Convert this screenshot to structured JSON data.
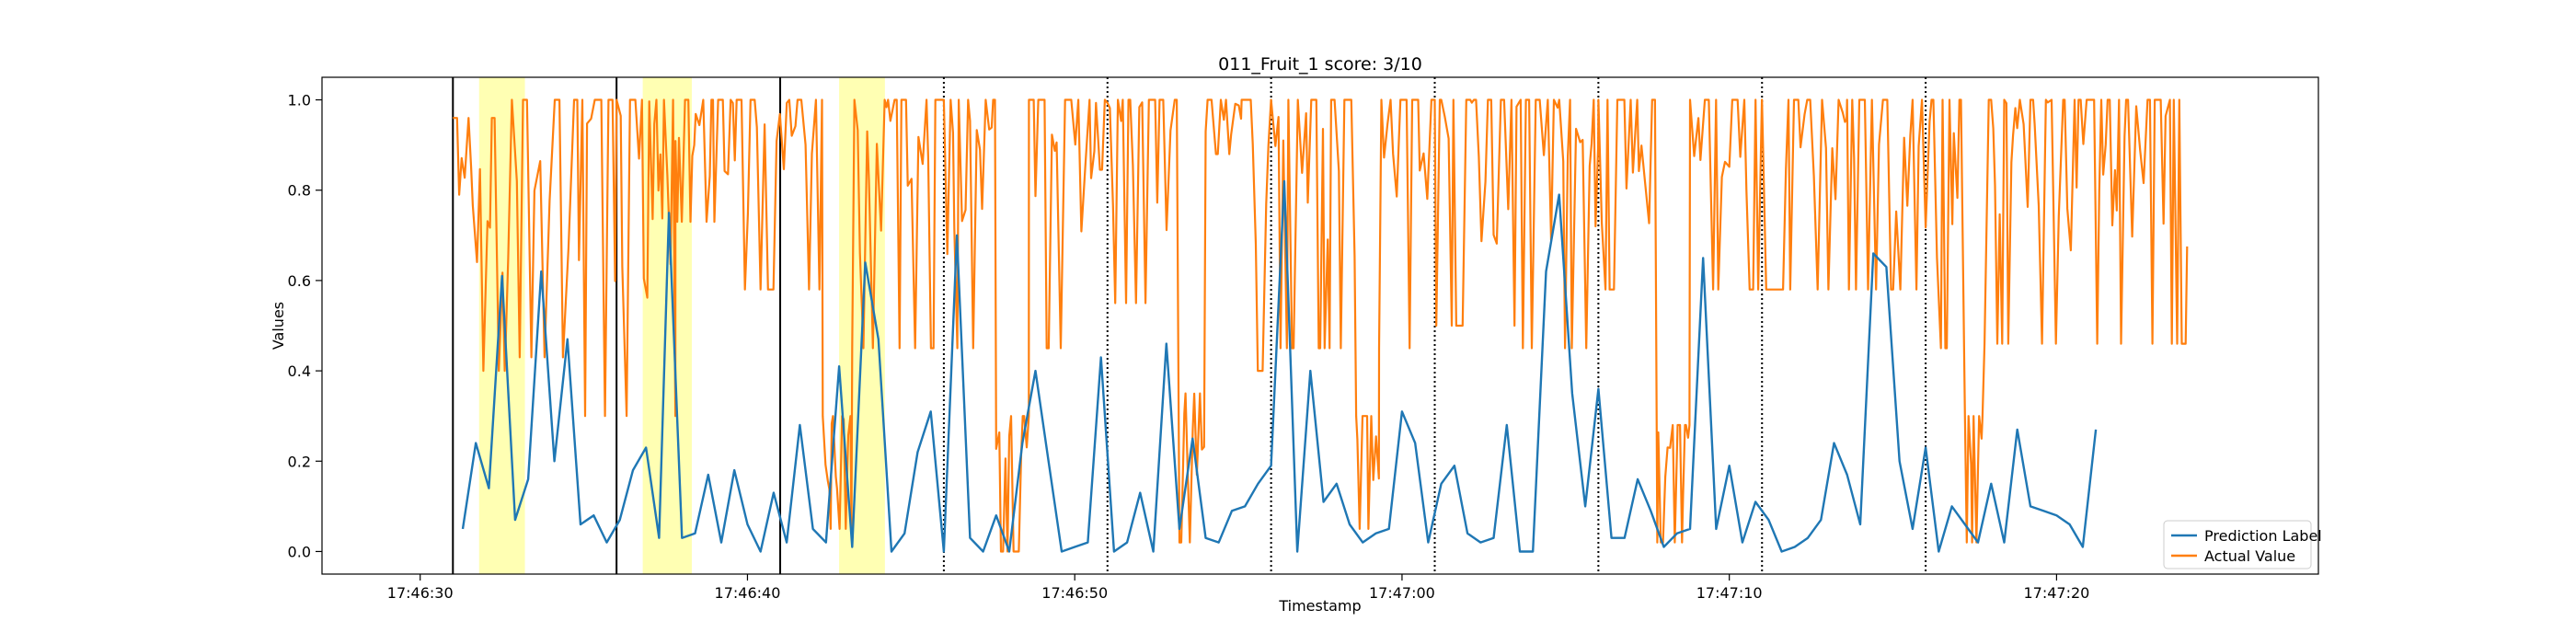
{
  "chart_data": {
    "type": "line",
    "title": "011_Fruit_1 score: 3/10",
    "xlabel": "Timestamp",
    "ylabel": "Values",
    "xlim_seconds": [
      27.0,
      88.0
    ],
    "ylim": [
      -0.05,
      1.05
    ],
    "x_ticks": [
      {
        "t": 30,
        "label": "17:46:30"
      },
      {
        "t": 40,
        "label": "17:46:40"
      },
      {
        "t": 50,
        "label": "17:46:50"
      },
      {
        "t": 60,
        "label": "17:47:00"
      },
      {
        "t": 70,
        "label": "17:47:10"
      },
      {
        "t": 80,
        "label": "17:47:20"
      }
    ],
    "y_ticks": [
      "0.0",
      "0.2",
      "0.4",
      "0.6",
      "0.8",
      "1.0"
    ],
    "x_time_reference": "17:46:00",
    "legend_position": "lower right",
    "highlight_spans": [
      [
        31.8,
        33.2
      ],
      [
        36.8,
        38.3
      ],
      [
        42.8,
        44.2
      ]
    ],
    "solid_vlines": [
      31.0,
      36.0,
      41.0
    ],
    "dotted_vlines": [
      46.0,
      51.0,
      56.0,
      61.0,
      66.0,
      71.0,
      76.0
    ],
    "series": [
      {
        "name": "Prediction Label",
        "color": "#1f77b4",
        "points": [
          [
            31.3,
            0.05
          ],
          [
            31.7,
            0.24
          ],
          [
            32.1,
            0.14
          ],
          [
            32.5,
            0.61
          ],
          [
            32.9,
            0.07
          ],
          [
            33.3,
            0.16
          ],
          [
            33.7,
            0.62
          ],
          [
            34.1,
            0.2
          ],
          [
            34.5,
            0.47
          ],
          [
            34.9,
            0.06
          ],
          [
            35.3,
            0.08
          ],
          [
            35.7,
            0.02
          ],
          [
            36.1,
            0.07
          ],
          [
            36.5,
            0.18
          ],
          [
            36.9,
            0.23
          ],
          [
            37.3,
            0.03
          ],
          [
            37.6,
            0.75
          ],
          [
            38.0,
            0.03
          ],
          [
            38.4,
            0.04
          ],
          [
            38.8,
            0.17
          ],
          [
            39.2,
            0.02
          ],
          [
            39.6,
            0.18
          ],
          [
            40.0,
            0.06
          ],
          [
            40.4,
            0.0
          ],
          [
            40.8,
            0.13
          ],
          [
            41.2,
            0.02
          ],
          [
            41.6,
            0.28
          ],
          [
            42.0,
            0.05
          ],
          [
            42.4,
            0.02
          ],
          [
            42.8,
            0.41
          ],
          [
            43.2,
            0.01
          ],
          [
            43.6,
            0.64
          ],
          [
            44.0,
            0.47
          ],
          [
            44.4,
            0.0
          ],
          [
            44.8,
            0.04
          ],
          [
            45.2,
            0.22
          ],
          [
            45.6,
            0.31
          ],
          [
            46.0,
            0.0
          ],
          [
            46.4,
            0.7
          ],
          [
            46.8,
            0.03
          ],
          [
            47.2,
            0.0
          ],
          [
            47.6,
            0.08
          ],
          [
            48.0,
            0.0
          ],
          [
            48.4,
            0.24
          ],
          [
            48.8,
            0.4
          ],
          [
            49.2,
            0.2
          ],
          [
            49.6,
            0.0
          ],
          [
            50.0,
            0.01
          ],
          [
            50.4,
            0.02
          ],
          [
            50.8,
            0.43
          ],
          [
            51.2,
            0.0
          ],
          [
            51.6,
            0.02
          ],
          [
            52.0,
            0.13
          ],
          [
            52.4,
            0.0
          ],
          [
            52.8,
            0.46
          ],
          [
            53.2,
            0.05
          ],
          [
            53.6,
            0.25
          ],
          [
            54.0,
            0.03
          ],
          [
            54.4,
            0.02
          ],
          [
            54.8,
            0.09
          ],
          [
            55.2,
            0.1
          ],
          [
            55.6,
            0.15
          ],
          [
            56.0,
            0.19
          ],
          [
            56.4,
            0.82
          ],
          [
            56.8,
            0.0
          ],
          [
            57.2,
            0.4
          ],
          [
            57.6,
            0.11
          ],
          [
            58.0,
            0.15
          ],
          [
            58.4,
            0.06
          ],
          [
            58.8,
            0.02
          ],
          [
            59.2,
            0.04
          ],
          [
            59.6,
            0.05
          ],
          [
            60.0,
            0.31
          ],
          [
            60.4,
            0.24
          ],
          [
            60.8,
            0.02
          ],
          [
            61.2,
            0.15
          ],
          [
            61.6,
            0.19
          ],
          [
            62.0,
            0.04
          ],
          [
            62.4,
            0.02
          ],
          [
            62.8,
            0.03
          ],
          [
            63.2,
            0.28
          ],
          [
            63.6,
            0.0
          ],
          [
            64.0,
            0.0
          ],
          [
            64.4,
            0.62
          ],
          [
            64.8,
            0.79
          ],
          [
            65.2,
            0.35
          ],
          [
            65.6,
            0.1
          ],
          [
            66.0,
            0.36
          ],
          [
            66.4,
            0.03
          ],
          [
            66.8,
            0.03
          ],
          [
            67.2,
            0.16
          ],
          [
            67.6,
            0.09
          ],
          [
            68.0,
            0.01
          ],
          [
            68.4,
            0.04
          ],
          [
            68.8,
            0.05
          ],
          [
            69.2,
            0.65
          ],
          [
            69.6,
            0.05
          ],
          [
            70.0,
            0.19
          ],
          [
            70.4,
            0.02
          ],
          [
            70.8,
            0.11
          ],
          [
            71.2,
            0.07
          ],
          [
            71.6,
            0.0
          ],
          [
            72.0,
            0.01
          ],
          [
            72.4,
            0.03
          ],
          [
            72.8,
            0.07
          ],
          [
            73.2,
            0.24
          ],
          [
            73.6,
            0.17
          ],
          [
            74.0,
            0.06
          ],
          [
            74.4,
            0.66
          ],
          [
            74.8,
            0.63
          ],
          [
            75.2,
            0.2
          ],
          [
            75.6,
            0.05
          ],
          [
            76.0,
            0.23
          ],
          [
            76.4,
            0.0
          ],
          [
            76.8,
            0.1
          ],
          [
            77.2,
            0.06
          ],
          [
            77.6,
            0.02
          ],
          [
            78.0,
            0.15
          ],
          [
            78.4,
            0.02
          ],
          [
            78.8,
            0.27
          ],
          [
            79.2,
            0.1
          ],
          [
            79.6,
            0.09
          ],
          [
            80.0,
            0.08
          ],
          [
            80.4,
            0.06
          ],
          [
            80.8,
            0.01
          ],
          [
            81.2,
            0.27
          ]
        ]
      },
      {
        "name": "Actual Value",
        "color": "#ff7f0e",
        "segments": [
          {
            "t0": 31.0,
            "t1": 32.6,
            "lo": 0.4,
            "hi": 0.96,
            "mid": 0.64,
            "period": 0.09
          },
          {
            "t0": 32.6,
            "t1": 34.8,
            "lo": 0.43,
            "hi": 1.0,
            "mid": 0.84,
            "period": 0.13
          },
          {
            "t0": 34.8,
            "t1": 36.0,
            "lo": 0.3,
            "hi": 1.0,
            "mid": 0.5,
            "period": 0.09
          },
          {
            "t0": 36.0,
            "t1": 37.0,
            "lo": 0.3,
            "hi": 1.0,
            "mid": 0.6,
            "period": 0.09
          },
          {
            "t0": 37.0,
            "t1": 37.8,
            "lo": 0.3,
            "hi": 1.0,
            "mid": 0.95,
            "period": 0.07
          },
          {
            "t0": 37.8,
            "t1": 39.3,
            "lo": 0.73,
            "hi": 1.0,
            "mid": 0.85,
            "period": 0.08
          },
          {
            "t0": 39.3,
            "t1": 42.3,
            "lo": 0.58,
            "hi": 1.0,
            "mid": 0.8,
            "period": 0.09
          },
          {
            "t0": 42.3,
            "t1": 43.2,
            "lo": 0.05,
            "hi": 0.3,
            "mid": 0.15,
            "period": 0.06
          },
          {
            "t0": 43.2,
            "t1": 46.0,
            "lo": 0.45,
            "hi": 1.0,
            "mid": 0.8,
            "period": 0.09
          },
          {
            "t0": 46.0,
            "t1": 47.6,
            "lo": 0.45,
            "hi": 1.0,
            "mid": 0.8,
            "period": 0.08
          },
          {
            "t0": 47.6,
            "t1": 48.6,
            "lo": 0.0,
            "hi": 0.3,
            "mid": 0.1,
            "period": 0.07
          },
          {
            "t0": 48.6,
            "t1": 51.0,
            "lo": 0.45,
            "hi": 1.0,
            "mid": 0.85,
            "period": 0.09
          },
          {
            "t0": 51.0,
            "t1": 53.2,
            "lo": 0.55,
            "hi": 1.0,
            "mid": 0.83,
            "period": 0.09
          },
          {
            "t0": 53.2,
            "t1": 54.0,
            "lo": 0.02,
            "hi": 0.35,
            "mid": 0.1,
            "period": 0.07
          },
          {
            "t0": 54.0,
            "t1": 55.1,
            "lo": 0.88,
            "hi": 1.0,
            "mid": 0.98,
            "period": 0.09
          },
          {
            "t0": 55.1,
            "t1": 56.0,
            "lo": 0.4,
            "hi": 1.0,
            "mid": 0.85,
            "period": 0.08
          },
          {
            "t0": 56.0,
            "t1": 58.6,
            "lo": 0.45,
            "hi": 1.0,
            "mid": 0.82,
            "period": 0.09
          },
          {
            "t0": 58.6,
            "t1": 59.3,
            "lo": 0.05,
            "hi": 0.3,
            "mid": 0.12,
            "period": 0.06
          },
          {
            "t0": 59.3,
            "t1": 61.0,
            "lo": 0.45,
            "hi": 1.0,
            "mid": 0.82,
            "period": 0.09
          },
          {
            "t0": 61.0,
            "t1": 63.5,
            "lo": 0.5,
            "hi": 1.0,
            "mid": 0.82,
            "period": 0.09
          },
          {
            "t0": 63.5,
            "t1": 66.0,
            "lo": 0.45,
            "hi": 1.0,
            "mid": 0.8,
            "period": 0.09
          },
          {
            "t0": 66.0,
            "t1": 67.8,
            "lo": 0.58,
            "hi": 1.0,
            "mid": 0.82,
            "period": 0.09
          },
          {
            "t0": 67.8,
            "t1": 68.8,
            "lo": 0.02,
            "hi": 0.28,
            "mid": 0.08,
            "period": 0.06
          },
          {
            "t0": 68.8,
            "t1": 71.0,
            "lo": 0.58,
            "hi": 1.0,
            "mid": 0.82,
            "period": 0.09
          },
          {
            "t0": 71.0,
            "t1": 72.3,
            "lo": 0.58,
            "hi": 1.0,
            "mid": 0.82,
            "period": 0.09
          },
          {
            "t0": 72.3,
            "t1": 73.6,
            "lo": 0.58,
            "hi": 1.0,
            "mid": 0.88,
            "period": 0.09
          },
          {
            "t0": 73.6,
            "t1": 76.0,
            "lo": 0.58,
            "hi": 1.0,
            "mid": 0.92,
            "period": 0.09
          },
          {
            "t0": 76.0,
            "t1": 77.2,
            "lo": 0.45,
            "hi": 1.0,
            "mid": 0.85,
            "period": 0.09
          },
          {
            "t0": 77.2,
            "t1": 77.8,
            "lo": 0.02,
            "hi": 0.3,
            "mid": 0.1,
            "period": 0.06
          },
          {
            "t0": 77.8,
            "t1": 81.5,
            "lo": 0.46,
            "hi": 1.0,
            "mid": 0.82,
            "period": 0.09
          },
          {
            "t0": 81.5,
            "t1": 84.0,
            "lo": 0.46,
            "hi": 1.0,
            "mid": 0.82,
            "period": 0.09
          }
        ]
      }
    ]
  }
}
